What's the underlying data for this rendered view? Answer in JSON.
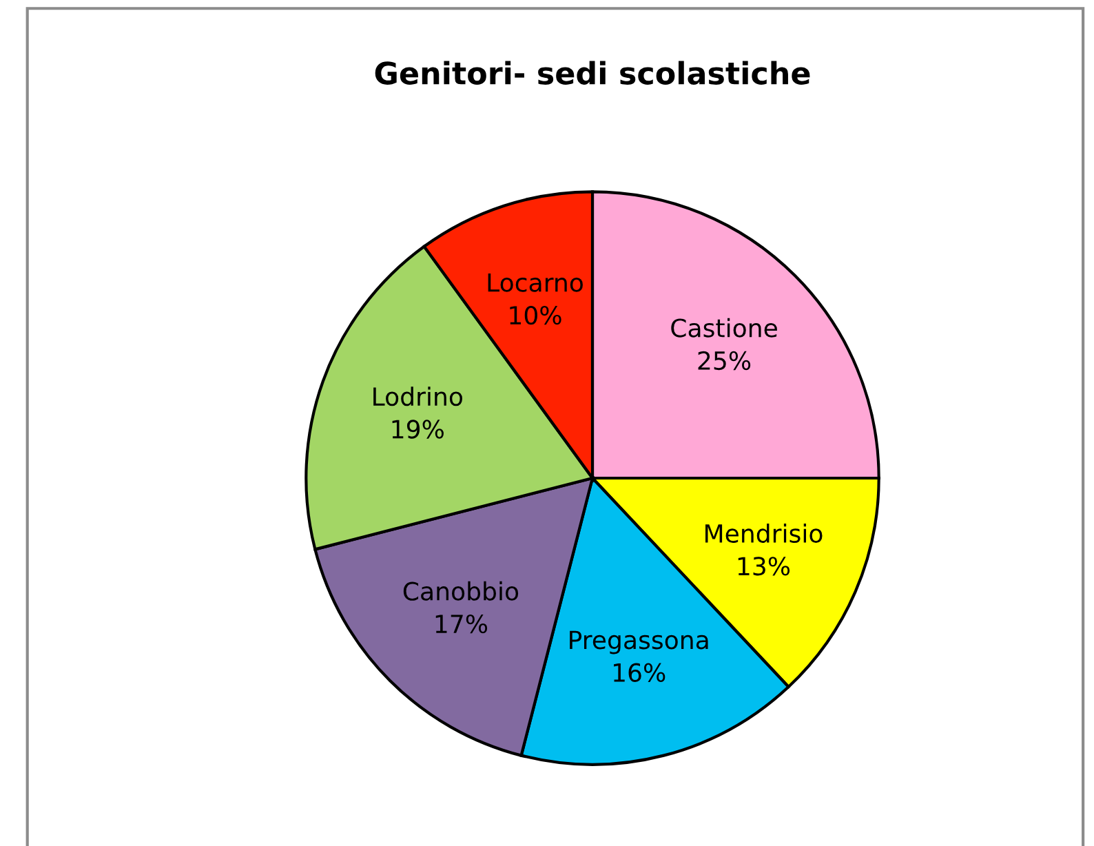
{
  "chart_data": {
    "type": "pie",
    "title": "Genitori- sedi scolastiche",
    "categories": [
      "Castione",
      "Mendrisio",
      "Pregassona",
      "Canobbio",
      "Lodrino",
      "Locarno"
    ],
    "values": [
      25,
      13,
      16,
      17,
      19,
      10
    ],
    "colors": [
      "#ffa8d6",
      "#ffff00",
      "#00bef0",
      "#826aa0",
      "#a3d665",
      "#ff2200"
    ],
    "value_labels": [
      "25%",
      "13%",
      "16%",
      "17%",
      "19%",
      "10%"
    ],
    "legend": false
  }
}
